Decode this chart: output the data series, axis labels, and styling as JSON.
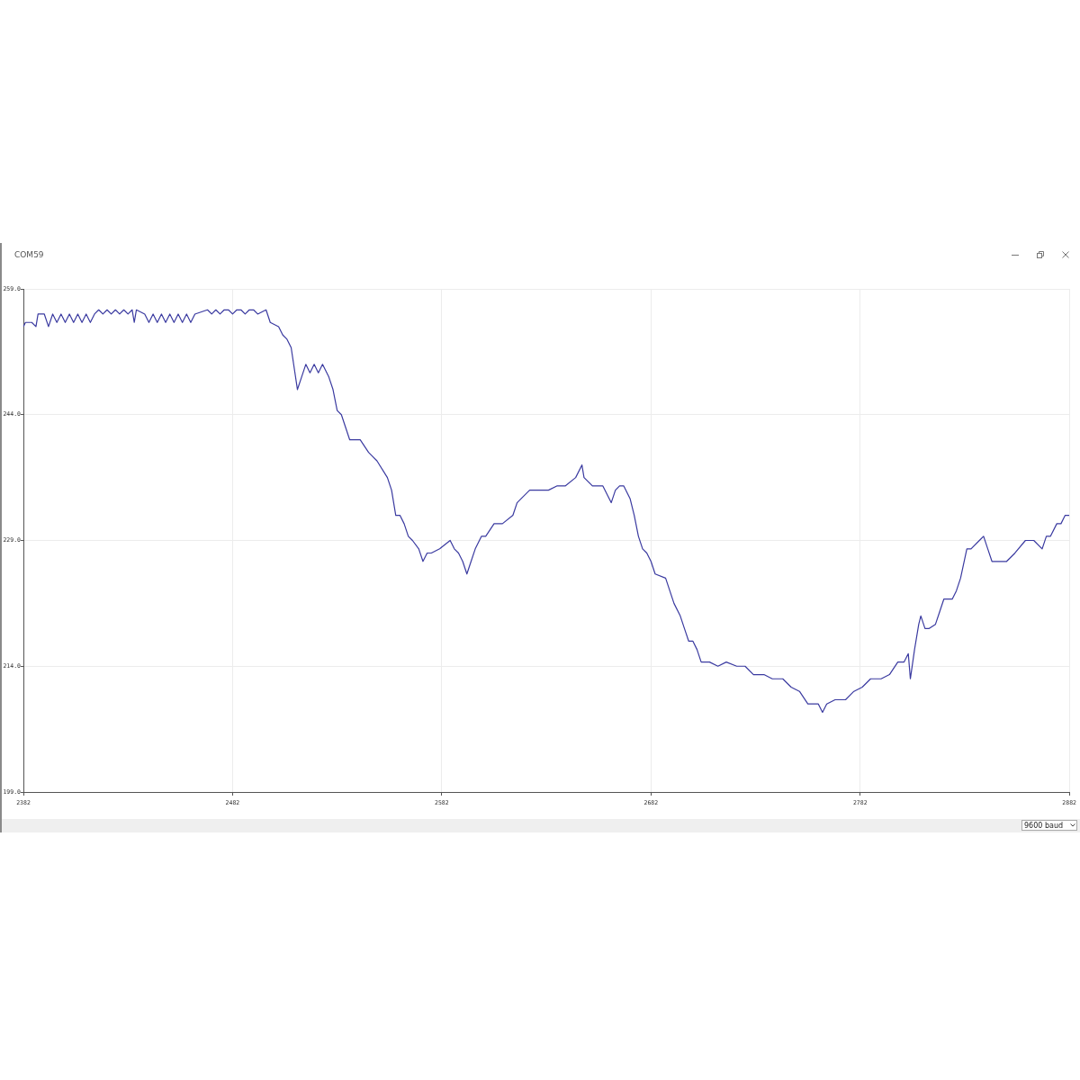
{
  "chart_data": {
    "type": "line",
    "title": "COM59",
    "x": [
      2382,
      2383,
      2386,
      2388,
      2389,
      2392,
      2394,
      2396,
      2398,
      2400,
      2402,
      2404,
      2406,
      2408,
      2410,
      2412,
      2414,
      2416,
      2418,
      2420,
      2422,
      2424,
      2426,
      2428,
      2430,
      2432,
      2434,
      2435,
      2436,
      2440,
      2442,
      2444,
      2446,
      2448,
      2450,
      2452,
      2454,
      2456,
      2458,
      2460,
      2462,
      2464,
      2470,
      2472,
      2474,
      2476,
      2478,
      2480,
      2482,
      2484,
      2486,
      2488,
      2490,
      2492,
      2494,
      2498,
      2500,
      2504,
      2506,
      2508,
      2510,
      2513,
      2515,
      2517,
      2519,
      2521,
      2523,
      2525,
      2528,
      2530,
      2532,
      2534,
      2536,
      2538,
      2543,
      2547,
      2551,
      2556,
      2558,
      2560,
      2562,
      2564,
      2566,
      2568,
      2571,
      2573,
      2575,
      2577,
      2581,
      2586,
      2588,
      2590,
      2592,
      2594,
      2596,
      2598,
      2601,
      2603,
      2607,
      2611,
      2616,
      2618,
      2620,
      2624,
      2629,
      2633,
      2637,
      2641,
      2646,
      2649,
      2650,
      2654,
      2659,
      2663,
      2665,
      2667,
      2669,
      2672,
      2674,
      2676,
      2678,
      2680,
      2682,
      2684,
      2689,
      2691,
      2693,
      2696,
      2698,
      2700,
      2702,
      2704,
      2706,
      2710,
      2714,
      2718,
      2723,
      2727,
      2731,
      2736,
      2740,
      2745,
      2749,
      2753,
      2757,
      2762,
      2764,
      2766,
      2770,
      2775,
      2779,
      2783,
      2787,
      2792,
      2796,
      2800,
      2803,
      2805,
      2806,
      2808,
      2810,
      2811,
      2813,
      2815,
      2818,
      2820,
      2822,
      2826,
      2828,
      2830,
      2833,
      2835,
      2839,
      2841,
      2843,
      2845,
      2848,
      2852,
      2856,
      2861,
      2865,
      2869,
      2871,
      2873,
      2876,
      2878,
      2880,
      2882
    ],
    "series": [
      {
        "color": "#3a3aa0",
        "values": [
          254.5,
          255,
          255,
          254.5,
          256,
          256,
          254.5,
          256,
          255,
          256,
          255,
          256,
          255,
          256,
          255,
          256,
          255,
          256,
          256.5,
          256,
          256.5,
          256,
          256.5,
          256,
          256.5,
          256,
          256.5,
          255,
          256.5,
          256,
          255,
          256,
          255,
          256,
          255,
          256,
          255,
          256,
          255,
          256,
          255,
          256,
          256.5,
          256,
          256.5,
          256,
          256.5,
          256.5,
          256,
          256.5,
          256.5,
          256,
          256.5,
          256.5,
          256,
          256.5,
          255,
          254.5,
          253.5,
          253,
          252,
          247,
          248.5,
          250,
          249,
          250,
          249,
          250,
          248.5,
          247,
          244.5,
          244,
          242.5,
          241,
          241,
          239.5,
          238.5,
          236.5,
          235,
          232,
          232,
          231,
          229.5,
          229,
          228,
          226.5,
          227.5,
          227.5,
          228,
          229,
          228,
          227.5,
          226.5,
          225,
          226.5,
          228,
          229.5,
          229.5,
          231,
          231,
          232,
          233.5,
          234,
          235,
          235,
          235,
          235.5,
          235.5,
          236.5,
          238,
          236.5,
          235.5,
          235.5,
          233.5,
          235,
          235.5,
          235.5,
          234,
          232,
          229.5,
          228,
          227.5,
          226.5,
          225,
          224.5,
          223,
          221.5,
          220,
          218.5,
          217,
          217,
          216,
          214.5,
          214.5,
          214,
          214.5,
          214,
          214,
          213,
          213,
          212.5,
          212.5,
          211.5,
          211,
          209.5,
          209.5,
          208.5,
          209.5,
          210,
          210,
          211,
          211.5,
          212.5,
          212.5,
          213,
          214.5,
          214.5,
          215.5,
          212.5,
          216,
          219,
          220,
          218.5,
          218.5,
          219,
          220.5,
          222,
          222,
          223,
          224.5,
          228,
          228,
          229,
          229.5,
          228,
          226.5,
          226.5,
          226.5,
          227.5,
          229,
          229,
          228,
          229.5,
          229.5,
          231,
          231,
          232,
          232
        ]
      }
    ],
    "xlim": [
      2382,
      2882
    ],
    "ylim": [
      199,
      259
    ],
    "xticks": [
      2382,
      2482,
      2582,
      2682,
      2782,
      2882
    ],
    "yticks": [
      {
        "value": 199,
        "label": "199.0"
      },
      {
        "value": 214,
        "label": "214.0"
      },
      {
        "value": 229,
        "label": "229.0"
      },
      {
        "value": 244,
        "label": "244.0"
      },
      {
        "value": 259,
        "label": "259.0"
      }
    ],
    "grid": true,
    "legend": false,
    "annotations": [
      "9600 baud"
    ]
  }
}
